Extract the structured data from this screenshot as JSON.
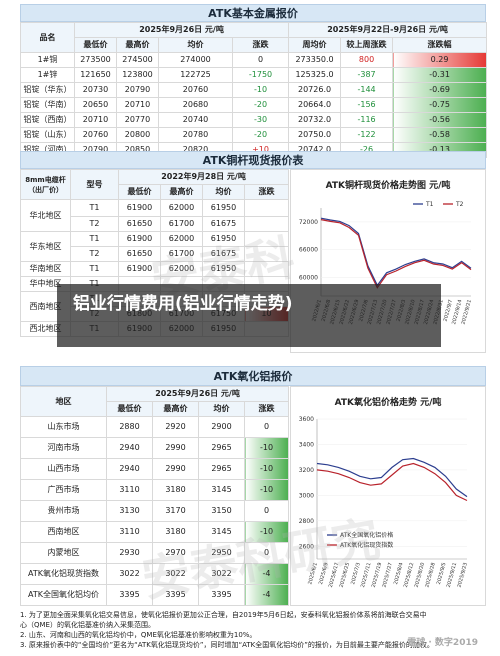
{
  "page_title": "铝业行情费用(铝业行情走势)",
  "section1": {
    "title": "ATK基本金属报价",
    "date_left": "2025年9月26日  元/吨",
    "date_right": "2025年9月22日-9月26日  元/吨",
    "headers": [
      "品名",
      "最低价",
      "最高价",
      "均价",
      "涨跌",
      "周均价",
      "较上周涨跌",
      "涨跌幅"
    ],
    "rows": [
      {
        "name": "1#铜",
        "low": "273500",
        "high": "274500",
        "avg": "274000",
        "chg": "0",
        "wavg": "273350.0",
        "wchg": "800",
        "wpct": "0.29"
      },
      {
        "name": "1#锌",
        "low": "121650",
        "high": "123800",
        "avg": "122725",
        "chg": "-1750",
        "wavg": "125325.0",
        "wchg": "-387",
        "wpct": "-0.31"
      },
      {
        "name": "铝锭（华东）",
        "low": "20730",
        "high": "20790",
        "avg": "20760",
        "chg": "-10",
        "wavg": "20726.0",
        "wchg": "-144",
        "wpct": "-0.69"
      },
      {
        "name": "铝锭（华南）",
        "low": "20650",
        "high": "20710",
        "avg": "20680",
        "chg": "-20",
        "wavg": "20664.0",
        "wchg": "-156",
        "wpct": "-0.75"
      },
      {
        "name": "铝锭（西南）",
        "low": "20710",
        "high": "20770",
        "avg": "20740",
        "chg": "-30",
        "wavg": "20732.0",
        "wchg": "-116",
        "wpct": "-0.56"
      },
      {
        "name": "铝锭（山东）",
        "low": "20760",
        "high": "20800",
        "avg": "20780",
        "chg": "-20",
        "wavg": "20750.0",
        "wchg": "-122",
        "wpct": "-0.58"
      },
      {
        "name": "铝锭（河南）",
        "low": "20790",
        "high": "20850",
        "avg": "20820",
        "chg": "+10",
        "wavg": "20742.0",
        "wchg": "-26",
        "wpct": "-0.13"
      }
    ]
  },
  "section2": {
    "title": "ATK铜杆现货报价表",
    "date": "2022年9月28日  元/吨",
    "headers": [
      "8mm电缆杆（出厂价）",
      "型号",
      "最低价",
      "最高价",
      "均价",
      "涨跌"
    ],
    "rows": [
      {
        "region": "华北地区",
        "model": "T1",
        "low": "61900",
        "high": "62000",
        "avg": "61950",
        "chg": ""
      },
      {
        "region": "",
        "model": "T2",
        "low": "61650",
        "high": "61700",
        "avg": "61675",
        "chg": ""
      },
      {
        "region": "华东地区",
        "model": "T1",
        "low": "61900",
        "high": "62000",
        "avg": "61950",
        "chg": ""
      },
      {
        "region": "",
        "model": "T2",
        "low": "61650",
        "high": "61700",
        "avg": "61675",
        "chg": ""
      },
      {
        "region": "华南地区",
        "model": "T1",
        "low": "61900",
        "high": "62000",
        "avg": "61950",
        "chg": ""
      },
      {
        "region": "华中地区",
        "model": "T1",
        "low": "",
        "high": "",
        "avg": "",
        "chg": ""
      },
      {
        "region": "西南地区",
        "model": "T1",
        "low": "",
        "high": "",
        "avg": "",
        "chg": ""
      },
      {
        "region": "",
        "model": "T2",
        "low": "61800",
        "high": "61700",
        "avg": "61750",
        "chg": "10"
      },
      {
        "region": "西北地区",
        "model": "T1",
        "low": "61900",
        "high": "62000",
        "avg": "61950",
        "chg": ""
      }
    ],
    "chart": {
      "title": "ATK铜杆现货价格走势图  元/吨",
      "legend": [
        "T1",
        "T2"
      ],
      "colors": [
        "#2c3e8f",
        "#b8222b"
      ],
      "yticks": [
        "72000",
        "66000",
        "60000"
      ],
      "xticks": [
        "2022/6/1",
        "2022/6/8",
        "2022/6/15",
        "2022/6/22",
        "2022/6/29",
        "2022/7/6",
        "2022/7/13",
        "2022/7/20",
        "2022/7/27",
        "2022/8/3",
        "2022/8/10",
        "2022/8/17",
        "2022/8/24",
        "2022/8/31",
        "2022/9/7",
        "2022/9/14",
        "2022/9/21"
      ]
    }
  },
  "chart_data": [
    {
      "type": "line",
      "title": "ATK铜杆现货价格走势图  元/吨",
      "x": [
        "2022/6/1",
        "2022/6/8",
        "2022/6/15",
        "2022/6/22",
        "2022/6/29",
        "2022/7/6",
        "2022/7/13",
        "2022/7/20",
        "2022/7/27",
        "2022/8/3",
        "2022/8/10",
        "2022/8/17",
        "2022/8/24",
        "2022/8/31",
        "2022/9/7",
        "2022/9/14",
        "2022/9/21"
      ],
      "series": [
        {
          "name": "T1",
          "values": [
            72800,
            72400,
            72100,
            71200,
            69500,
            62500,
            58300,
            61000,
            61800,
            62800,
            63500,
            64000,
            63200,
            62900,
            62100,
            63500,
            62000
          ]
        },
        {
          "name": "T2",
          "values": [
            72500,
            72100,
            71800,
            70800,
            69100,
            62000,
            57800,
            60600,
            61400,
            62400,
            63200,
            63700,
            62900,
            62600,
            61800,
            63200,
            61700
          ]
        }
      ],
      "ylim": [
        56000,
        75000
      ],
      "legend": "top-right"
    },
    {
      "type": "line",
      "title": "ATK氧化铝价格走势  元/吨",
      "x": [
        "2025/6/1",
        "2025/6/9",
        "2025/6/17",
        "2025/6/25",
        "2025/7/3",
        "2025/7/11",
        "2025/7/19",
        "2025/7/27",
        "2025/8/4",
        "2025/8/12",
        "2025/8/20",
        "2025/8/28",
        "2025/9/5",
        "2025/9/11",
        "2025/9/23"
      ],
      "series": [
        {
          "name": "ATK全国氧化铝价格",
          "values": [
            3250,
            3240,
            3220,
            3190,
            3150,
            3130,
            3140,
            3220,
            3280,
            3290,
            3260,
            3220,
            3150,
            3050,
            2990
          ]
        },
        {
          "name": "ATK氧化铝现货指数",
          "values": [
            3200,
            3190,
            3170,
            3140,
            3100,
            3080,
            3090,
            3160,
            3230,
            3250,
            3220,
            3170,
            3100,
            3000,
            2960
          ]
        }
      ],
      "ylim": [
        2500,
        3600
      ],
      "legend": "bottom"
    }
  ],
  "section3": {
    "title": "ATK氧化铝报价",
    "date": "2025年9月26日  元/吨",
    "headers": [
      "地区",
      "最低价",
      "最高价",
      "均价",
      "涨跌"
    ],
    "rows": [
      {
        "region": "山东市场",
        "low": "2880",
        "high": "2920",
        "avg": "2900",
        "chg": "0"
      },
      {
        "region": "河南市场",
        "low": "2940",
        "high": "2990",
        "avg": "2965",
        "chg": "-10"
      },
      {
        "region": "山西市场",
        "low": "2940",
        "high": "2990",
        "avg": "2965",
        "chg": "-10"
      },
      {
        "region": "广西市场",
        "low": "3110",
        "high": "3180",
        "avg": "3145",
        "chg": "-10"
      },
      {
        "region": "贵州市场",
        "low": "3130",
        "high": "3170",
        "avg": "3150",
        "chg": "0"
      },
      {
        "region": "西南地区",
        "low": "3110",
        "high": "3180",
        "avg": "3145",
        "chg": "-10"
      },
      {
        "region": "内蒙地区",
        "low": "2930",
        "high": "2970",
        "avg": "2950",
        "chg": "0"
      },
      {
        "region": "ATK氧化铝现货指数",
        "low": "3022",
        "high": "3022",
        "avg": "3022",
        "chg": "-4"
      },
      {
        "region": "ATK全国氧化铝均价",
        "low": "3395",
        "high": "3395",
        "avg": "3395",
        "chg": "-4"
      }
    ],
    "chart": {
      "title": "ATK氧化铝价格走势  元/吨",
      "legend": [
        "ATK全国氧化铝价格",
        "ATK氧化铝现货指数"
      ],
      "colors": [
        "#2c3e8f",
        "#b8222b"
      ],
      "yticks": [
        "3600",
        "3400",
        "3200",
        "3000",
        "2800",
        "2600"
      ],
      "xticks": [
        "2025/6/1",
        "2025/6/9",
        "2025/6/17",
        "2025/6/25",
        "2025/7/3",
        "2025/7/11",
        "2025/7/19",
        "2025/7/27",
        "2025/8/4",
        "2025/8/12",
        "2025/8/20",
        "2025/8/28",
        "2025/9/5",
        "2025/9/11",
        "2025/9/23"
      ]
    }
  },
  "footnotes": [
    "1. 为了更加全面采集氧化铝交易信息，使氧化铝报价更加公正合理，自2019年5月6日起，安泰科氧化铝报价体系将前海联合交易中",
    "心（QME）的氧化铝基准价纳入采集范围。",
    "2. 山东、河南和山西的氧化铝均价中，QME氧化铝基准价影响权重为10%。",
    "3. 原来报价表中的“全国均价”更名为“ATK氧化铝现货均价”，同时增加“ATK全国氧化铝均价”的报价，为目前最主要产能报价的加权。"
  ],
  "watermark_stamp": "雪球 · 数字2019"
}
